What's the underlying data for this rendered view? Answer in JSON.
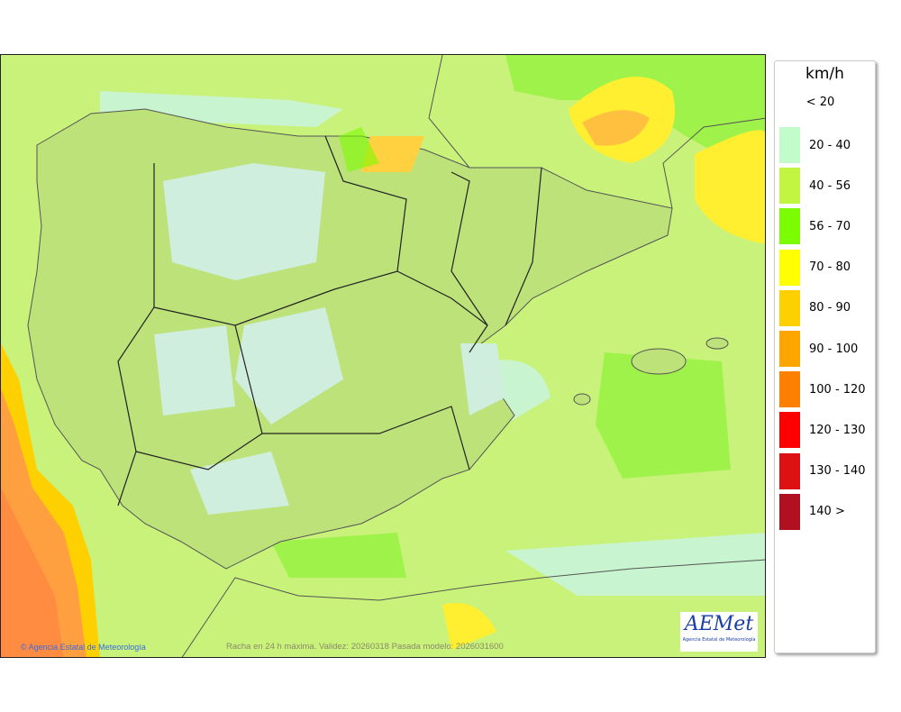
{
  "legend": {
    "unit": "km/h",
    "below_label": "< 20",
    "items": [
      {
        "label": "20 - 40",
        "color": "#c3fccb"
      },
      {
        "label": "40 - 56",
        "color": "#c2f542"
      },
      {
        "label": "56 - 70",
        "color": "#7cfc00"
      },
      {
        "label": "70 - 80",
        "color": "#ffff00"
      },
      {
        "label": "80 - 90",
        "color": "#ffd000"
      },
      {
        "label": "90 - 100",
        "color": "#ffa500"
      },
      {
        "label": "100 - 120",
        "color": "#ff8000"
      },
      {
        "label": "120 - 130",
        "color": "#ff0000"
      },
      {
        "label": "130 - 140",
        "color": "#dd1111"
      },
      {
        "label": "140 >",
        "color": "#b01020"
      }
    ]
  },
  "map": {
    "credit": "© Agencia Estatal de Meteorología",
    "caption": "Racha en 24 h máxima. Validez: 20260318 Pasada modelo: 2026031600"
  },
  "logo": {
    "name": "AEMet",
    "subtitle": "Agencia Estatal de Meteorología"
  }
}
